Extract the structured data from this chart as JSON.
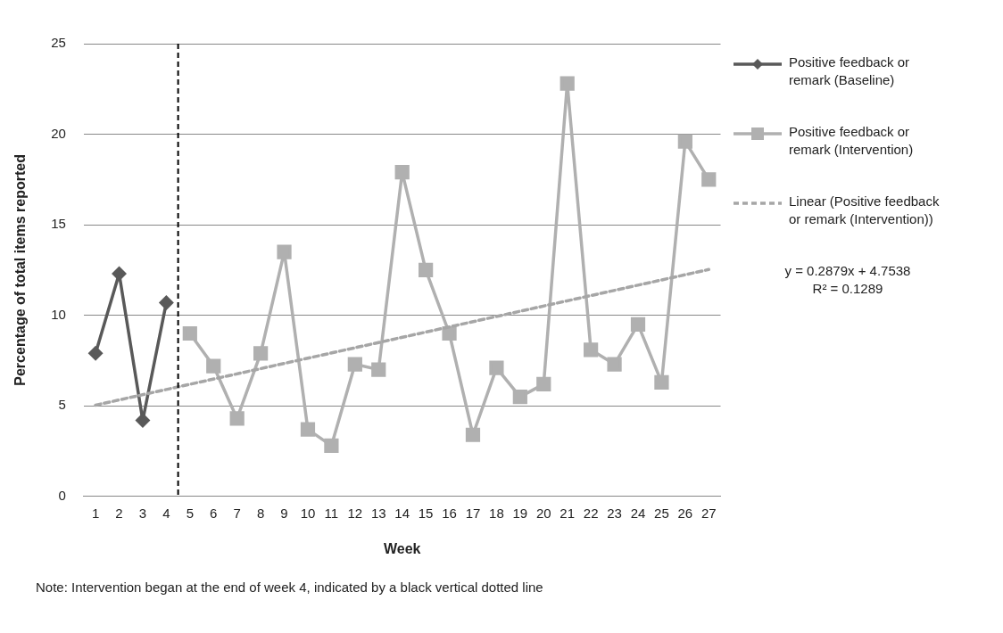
{
  "chart_data": {
    "type": "line",
    "xlabel": "Week",
    "ylabel": "Percentage of total items reported",
    "xlim": [
      0.5,
      27.5
    ],
    "xticks": [
      1,
      2,
      3,
      4,
      5,
      6,
      7,
      8,
      9,
      10,
      11,
      12,
      13,
      14,
      15,
      16,
      17,
      18,
      19,
      20,
      21,
      22,
      23,
      24,
      25,
      26,
      27
    ],
    "ylim": [
      0,
      25
    ],
    "yticks": [
      0,
      5,
      10,
      15,
      20,
      25
    ],
    "grid": "y",
    "legend": "right",
    "series": [
      {
        "name": "Positive feedback or remark (Baseline)",
        "color": "#595959",
        "marker": "diamond",
        "x": [
          1,
          2,
          3,
          4
        ],
        "values": [
          7.9,
          12.3,
          4.2,
          10.7
        ]
      },
      {
        "name": "Positive feedback or remark (Intervention)",
        "color": "#b0b0b0",
        "marker": "square",
        "x": [
          5,
          6,
          7,
          8,
          9,
          10,
          11,
          12,
          13,
          14,
          15,
          16,
          17,
          18,
          19,
          20,
          21,
          22,
          23,
          24,
          25,
          26,
          27
        ],
        "values": [
          9.0,
          7.2,
          4.3,
          7.9,
          13.5,
          3.7,
          2.8,
          7.3,
          7.0,
          17.9,
          12.5,
          9.0,
          3.4,
          7.1,
          5.5,
          6.2,
          22.8,
          8.1,
          7.3,
          9.5,
          6.3,
          19.6,
          17.5
        ]
      },
      {
        "name": "Linear (Positive feedback or remark (Intervention))",
        "color": "#a6a6a6",
        "marker": "none",
        "line_style": "dashed",
        "x": [
          1,
          27
        ],
        "values": [
          5.04,
          12.53
        ]
      }
    ],
    "ref_lines": [
      {
        "axis": "x",
        "value": 4.5,
        "color": "#000000",
        "line_style": "dashed"
      }
    ],
    "annotations": [
      "y = 0.2879x + 4.7538",
      "R² = 0.1289",
      "Note: Intervention began at the end of week 4, indicated by a black vertical dotted line"
    ]
  }
}
